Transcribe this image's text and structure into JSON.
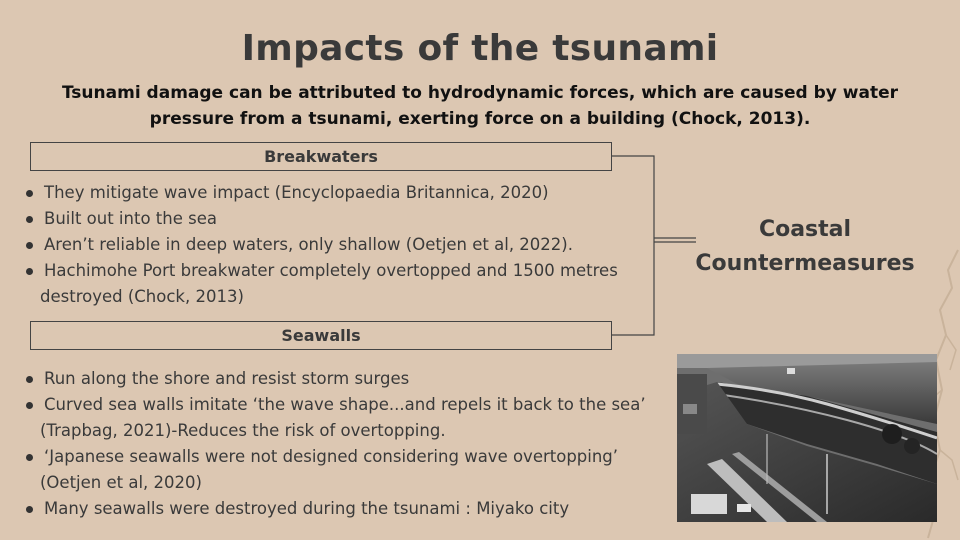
{
  "slide": {
    "title": "Impacts of the tsunami",
    "subtitle": "Tsunami damage can be attributed to hydrodynamic forces, which are caused by water pressure from a tsunami, exerting force on a building (Chock, 2013)."
  },
  "breakwaters": {
    "heading": "Breakwaters",
    "items": [
      {
        "line1": "They mitigate wave impact (Encyclopaedia Britannica, 2020)",
        "line2": ""
      },
      {
        "line1": "Built out into the sea",
        "line2": ""
      },
      {
        "line1": "Aren’t reliable in deep waters, only shallow (Oetjen et al, 2022).",
        "line2": ""
      },
      {
        "line1": "Hachimohe Port breakwater completely overtopped and 1500 metres",
        "line2": "destroyed (Chock, 2013)"
      }
    ]
  },
  "seawalls": {
    "heading": "Seawalls",
    "items": [
      {
        "line1": "Run along the shore and resist storm surges",
        "line2": ""
      },
      {
        "line1": "Curved sea walls imitate ‘the wave shape...and repels it back to the sea’",
        "line2": "(Trapbag, 2021)-Reduces the risk of overtopping."
      },
      {
        "line1": "‘Japanese seawalls were not designed considering wave overtopping’",
        "line2": "(Oetjen et al, 2020)"
      },
      {
        "line1": "Many seawalls were destroyed during the tsunami : Miyako city",
        "line2": ""
      }
    ]
  },
  "side_label": {
    "line1": "Coastal",
    "line2": "Countermeasures"
  },
  "colors": {
    "background": "#dcc7b2",
    "text": "#3a3a3a"
  }
}
